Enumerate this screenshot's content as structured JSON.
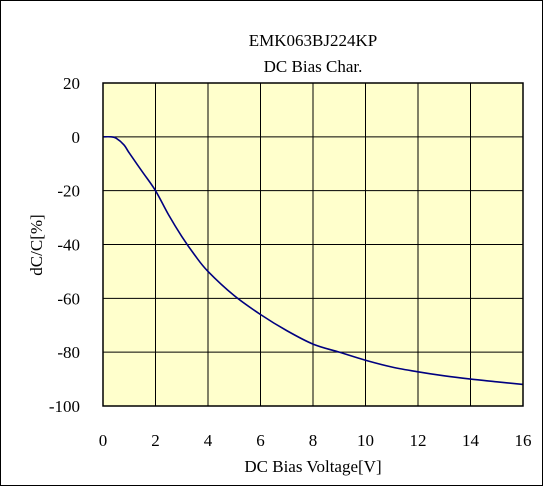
{
  "chart_data": {
    "type": "line",
    "title": "EMK063BJ224KP",
    "subtitle": "DC Bias Char.",
    "xlabel": "DC Bias Voltage[V]",
    "ylabel": "dC/C[%]",
    "xlim": [
      0,
      16
    ],
    "ylim": [
      -100,
      20
    ],
    "x_ticks": [
      0,
      2,
      4,
      6,
      8,
      10,
      12,
      14,
      16
    ],
    "y_ticks": [
      20,
      0,
      -20,
      -40,
      -60,
      -80,
      -100
    ],
    "grid": true,
    "legend": "none",
    "colors": {
      "plot_background": "#ffffcc",
      "series_line": "#000080",
      "grid": "#000000"
    },
    "series": [
      {
        "x": [
          0,
          0.3,
          0.5,
          0.8,
          1.0,
          1.5,
          2.0,
          2.5,
          3.0,
          3.5,
          4.0,
          5.0,
          6.0,
          7.0,
          8.0,
          9.0,
          10.0,
          11.0,
          12.0,
          13.0,
          14.0,
          15.0,
          16.0
        ],
        "values": [
          0,
          0,
          -0.5,
          -3,
          -6,
          -13,
          -20,
          -29,
          -37,
          -44,
          -50,
          -59,
          -66,
          -72,
          -77,
          -80,
          -83,
          -85.5,
          -87.3,
          -88.8,
          -90.0,
          -91.0,
          -92.0
        ]
      }
    ]
  }
}
